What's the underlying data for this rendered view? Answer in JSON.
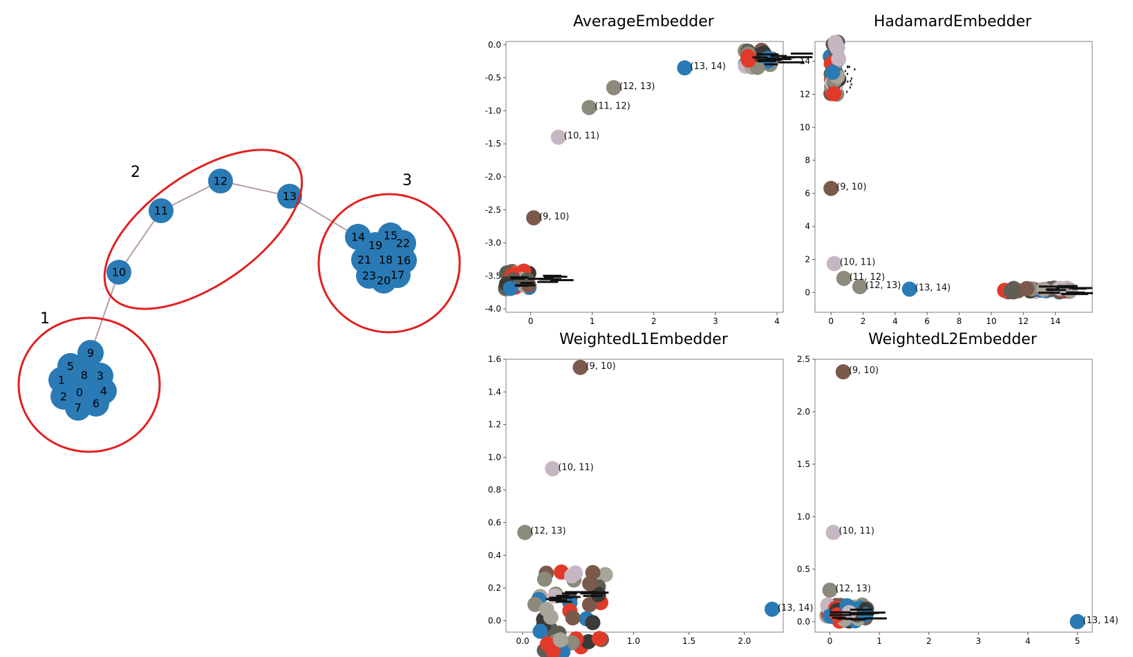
{
  "graph": {
    "edge_color": "#b89ca6",
    "node_color": "#2a7ab5",
    "cluster_color": "#e02020",
    "clusters": [
      {
        "label": "1",
        "members": [
          "9",
          "5",
          "1",
          "8",
          "3",
          "2",
          "0",
          "4",
          "7",
          "6"
        ]
      },
      {
        "label": "2",
        "members": [
          "10",
          "11",
          "12",
          "13"
        ]
      },
      {
        "label": "3",
        "members": [
          "14",
          "15",
          "19",
          "22",
          "21",
          "18",
          "16",
          "23",
          "20",
          "17"
        ]
      }
    ],
    "nodes": [
      "0",
      "1",
      "2",
      "3",
      "4",
      "5",
      "6",
      "7",
      "8",
      "9",
      "10",
      "11",
      "12",
      "13",
      "14",
      "15",
      "16",
      "17",
      "18",
      "19",
      "20",
      "21",
      "22",
      "23"
    ]
  },
  "chart_data": [
    {
      "type": "scatter",
      "title": "AverageEmbedder",
      "xlim": [
        -0.4,
        4.1
      ],
      "ylim": [
        -4.05,
        0.05
      ],
      "xticks": [
        "0",
        "1",
        "2",
        "3",
        "4"
      ],
      "yticks": [
        "0.0",
        "-0.5",
        "-1.0",
        "-1.5",
        "-2.0",
        "-2.5",
        "-3.0",
        "-3.5",
        "-4.0"
      ],
      "labeled_points": [
        {
          "label": "(13, 14)",
          "x": 2.5,
          "y": -0.35,
          "color": "#2a7ab5"
        },
        {
          "label": "(12, 13)",
          "x": 1.35,
          "y": -0.65,
          "color": "#8c8a7c"
        },
        {
          "label": "(11, 12)",
          "x": 0.95,
          "y": -0.95,
          "color": "#8c8a7c"
        },
        {
          "label": "(10, 11)",
          "x": 0.45,
          "y": -1.4,
          "color": "#c5b6c2"
        },
        {
          "label": "(9, 10)",
          "x": 0.05,
          "y": -2.62,
          "color": "#7b5a4c"
        }
      ],
      "clusters": [
        {
          "x": -0.2,
          "y": -3.55,
          "count": 28
        },
        {
          "x": 3.7,
          "y": -0.2,
          "count": 28
        }
      ]
    },
    {
      "type": "scatter",
      "title": "HadamardEmbedder",
      "xlim": [
        -1.0,
        16.3
      ],
      "ylim": [
        -1.2,
        15.2
      ],
      "xticks": [
        "0",
        "2",
        "4",
        "6",
        "8",
        "10",
        "12",
        "14"
      ],
      "yticks": [
        "0",
        "2",
        "4",
        "6",
        "8",
        "10",
        "12",
        "14"
      ],
      "labeled_points": [
        {
          "label": "(9, 10)",
          "x": 0.0,
          "y": 6.3,
          "color": "#7b5a4c"
        },
        {
          "label": "(10, 11)",
          "x": 0.2,
          "y": 1.75,
          "color": "#c5b6c2"
        },
        {
          "label": "(11, 12)",
          "x": 0.8,
          "y": 0.85,
          "color": "#8c8a7c"
        },
        {
          "label": "(12, 13)",
          "x": 1.8,
          "y": 0.35,
          "color": "#8c8a7c"
        },
        {
          "label": "(13, 14)",
          "x": 4.9,
          "y": 0.2,
          "color": "#2a7ab5"
        }
      ],
      "clusters": [
        {
          "x": 0.1,
          "y": 13.3,
          "count": 30
        },
        {
          "x": 13.2,
          "y": 0.15,
          "count": 30
        }
      ]
    },
    {
      "type": "scatter",
      "title": "WeightedL1Embedder",
      "xlim": [
        -0.15,
        2.35
      ],
      "ylim": [
        -0.07,
        1.6
      ],
      "xticks": [
        "0.0",
        "0.5",
        "1.0",
        "1.5",
        "2.0"
      ],
      "yticks": [
        "0.0",
        "0.2",
        "0.4",
        "0.6",
        "0.8",
        "1.0",
        "1.2",
        "1.4",
        "1.6"
      ],
      "labeled_points": [
        {
          "label": "(9, 10)",
          "x": 0.52,
          "y": 1.55,
          "color": "#7b5a4c"
        },
        {
          "label": "(10, 11)",
          "x": 0.27,
          "y": 0.93,
          "color": "#c5b6c2"
        },
        {
          "label": "(12, 13)",
          "x": 0.02,
          "y": 0.54,
          "color": "#8c8a7c"
        },
        {
          "label": "(13, 14)",
          "x": 2.25,
          "y": 0.07,
          "color": "#2a7ab5"
        }
      ],
      "clusters": [
        {
          "x": 0.25,
          "y": 0.15,
          "count": 45
        }
      ]
    },
    {
      "type": "scatter",
      "title": "WeightedL2Embedder",
      "xlim": [
        -0.3,
        5.3
      ],
      "ylim": [
        -0.1,
        2.5
      ],
      "xticks": [
        "0",
        "1",
        "2",
        "3",
        "4",
        "5"
      ],
      "yticks": [
        "0.0",
        "0.5",
        "1.0",
        "1.5",
        "2.0",
        "2.5"
      ],
      "labeled_points": [
        {
          "label": "(9, 10)",
          "x": 0.27,
          "y": 2.38,
          "color": "#7b5a4c"
        },
        {
          "label": "(10, 11)",
          "x": 0.07,
          "y": 0.85,
          "color": "#c5b6c2"
        },
        {
          "label": "(12, 13)",
          "x": 0.0,
          "y": 0.3,
          "color": "#8c8a7c"
        },
        {
          "label": "(13, 14)",
          "x": 5.0,
          "y": 0.0,
          "color": "#2a7ab5"
        }
      ],
      "clusters": [
        {
          "x": 0.1,
          "y": 0.08,
          "count": 40
        }
      ]
    }
  ]
}
